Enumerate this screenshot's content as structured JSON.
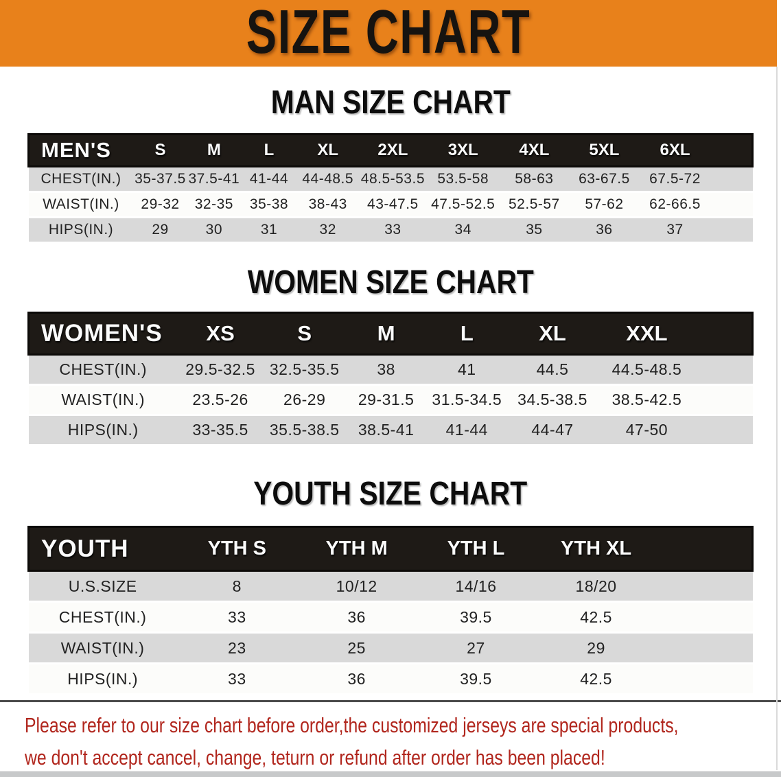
{
  "banner": {
    "title": "SIZE CHART",
    "background": "#e8811b",
    "title_color": "#161310"
  },
  "sections": [
    {
      "id": "men",
      "heading": "MAN SIZE CHART",
      "header_label": "MEN'S",
      "columns": [
        "S",
        "M",
        "L",
        "XL",
        "2XL",
        "3XL",
        "4XL",
        "5XL",
        "6XL"
      ],
      "rows": [
        {
          "label": "CHEST(IN.)",
          "values": [
            "35-37.5",
            "37.5-41",
            "41-44",
            "44-48.5",
            "48.5-53.5",
            "53.5-58",
            "58-63",
            "63-67.5",
            "67.5-72"
          ]
        },
        {
          "label": "WAIST(IN.)",
          "values": [
            "29-32",
            "32-35",
            "35-38",
            "38-43",
            "43-47.5",
            "47.5-52.5",
            "52.5-57",
            "57-62",
            "62-66.5"
          ]
        },
        {
          "label": "HIPS(IN.)",
          "values": [
            "29",
            "30",
            "31",
            "32",
            "33",
            "34",
            "35",
            "36",
            "37"
          ]
        }
      ]
    },
    {
      "id": "women",
      "heading": "WOMEN SIZE CHART",
      "header_label": "WOMEN'S",
      "columns": [
        "XS",
        "S",
        "M",
        "L",
        "XL",
        "XXL"
      ],
      "rows": [
        {
          "label": "CHEST(IN.)",
          "values": [
            "29.5-32.5",
            "32.5-35.5",
            "38",
            "41",
            "44.5",
            "44.5-48.5"
          ]
        },
        {
          "label": "WAIST(IN.)",
          "values": [
            "23.5-26",
            "26-29",
            "29-31.5",
            "31.5-34.5",
            "34.5-38.5",
            "38.5-42.5"
          ]
        },
        {
          "label": "HIPS(IN.)",
          "values": [
            "33-35.5",
            "35.5-38.5",
            "38.5-41",
            "41-44",
            "44-47",
            "47-50"
          ]
        }
      ]
    },
    {
      "id": "youth",
      "heading": "YOUTH SIZE CHART",
      "header_label": "YOUTH",
      "columns": [
        "YTH S",
        "YTH M",
        "YTH L",
        "YTH XL"
      ],
      "rows": [
        {
          "label": "U.S.SIZE",
          "values": [
            "8",
            "10/12",
            "14/16",
            "18/20"
          ]
        },
        {
          "label": "CHEST(IN.)",
          "values": [
            "33",
            "36",
            "39.5",
            "42.5"
          ]
        },
        {
          "label": "WAIST(IN.)",
          "values": [
            "23",
            "25",
            "27",
            "29"
          ]
        },
        {
          "label": "HIPS(IN.)",
          "values": [
            "33",
            "36",
            "39.5",
            "42.5"
          ]
        }
      ]
    }
  ],
  "disclaimer": {
    "lines": [
      "Please refer to our size chart before order,the customized jerseys are special products,",
      "we don't accept cancel, change, teturn or refund after order has been placed!"
    ],
    "color": "#b1261d"
  }
}
